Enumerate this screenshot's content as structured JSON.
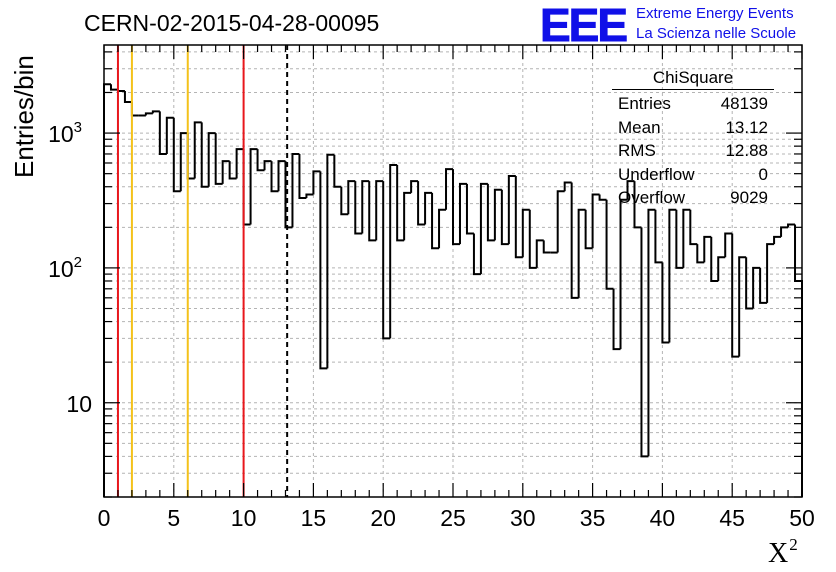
{
  "header": {
    "run_title": "CERN-02-2015-04-28-00095",
    "logo": "EEE",
    "logo_line1": "Extreme Energy Events",
    "logo_line2": "La Scienza nelle Scuole"
  },
  "stats": {
    "title": "ChiSquare",
    "rows": [
      {
        "label": "Entries",
        "value": "48139"
      },
      {
        "label": "Mean",
        "value": "13.12"
      },
      {
        "label": "RMS",
        "value": "12.88"
      },
      {
        "label": "Underflow",
        "value": "0"
      },
      {
        "label": "Overflow",
        "value": "9029"
      }
    ]
  },
  "axis_labels": {
    "y": "Entries/bin",
    "x_base": "X",
    "x_sup": "2"
  },
  "colors": {
    "histogram": "#000000",
    "red_lines": "#e8171c",
    "yellow_lines": "#f4c21a",
    "grid": "#b4b4b4",
    "logo": "#1010e8"
  },
  "chart_data": {
    "type": "histogram",
    "title": "ChiSquare",
    "xlabel": "X²",
    "ylabel": "Entries/bin",
    "y_scale": "log",
    "xlim": [
      0,
      50
    ],
    "ylim": [
      2,
      4500
    ],
    "bin_width": 0.5,
    "x_ticks": [
      0,
      5,
      10,
      15,
      20,
      25,
      30,
      35,
      40,
      45,
      50
    ],
    "x_tick_labels": [
      "0",
      "5",
      "10",
      "15",
      "20",
      "25",
      "30",
      "35",
      "40",
      "45",
      "50"
    ],
    "y_ticks": [
      {
        "value": 10,
        "label": "10",
        "sup": ""
      },
      {
        "value": 100,
        "label": "10",
        "sup": "2"
      },
      {
        "value": 1000,
        "label": "10",
        "sup": "3"
      }
    ],
    "grid": true,
    "values": [
      2300,
      2100,
      2050,
      1700,
      1350,
      1350,
      1400,
      1450,
      700,
      1300,
      370,
      1000,
      460,
      1200,
      400,
      1000,
      420,
      620,
      460,
      760,
      210,
      760,
      530,
      620,
      370,
      620,
      200,
      700,
      330,
      350,
      520,
      18,
      690,
      400,
      250,
      440,
      180,
      440,
      160,
      440,
      30,
      580,
      160,
      360,
      440,
      210,
      360,
      140,
      270,
      540,
      150,
      420,
      180,
      90,
      420,
      160,
      380,
      150,
      480,
      120,
      270,
      100,
      160,
      130,
      130,
      370,
      430,
      60,
      270,
      140,
      350,
      320,
      70,
      25,
      320,
      440,
      200,
      4,
      270,
      110,
      28,
      270,
      100,
      270,
      150,
      110,
      170,
      80,
      120,
      180,
      22,
      120,
      50,
      100,
      55,
      150,
      170,
      200,
      210,
      80
    ],
    "vertical_lines": [
      {
        "x": 1,
        "color": "red",
        "style": "solid"
      },
      {
        "x": 2,
        "color": "yellow",
        "style": "solid"
      },
      {
        "x": 6,
        "color": "yellow",
        "style": "solid"
      },
      {
        "x": 10,
        "color": "red",
        "style": "solid"
      },
      {
        "x": 13.12,
        "color": "black",
        "style": "dashed"
      }
    ],
    "legend_position": "top-right"
  }
}
